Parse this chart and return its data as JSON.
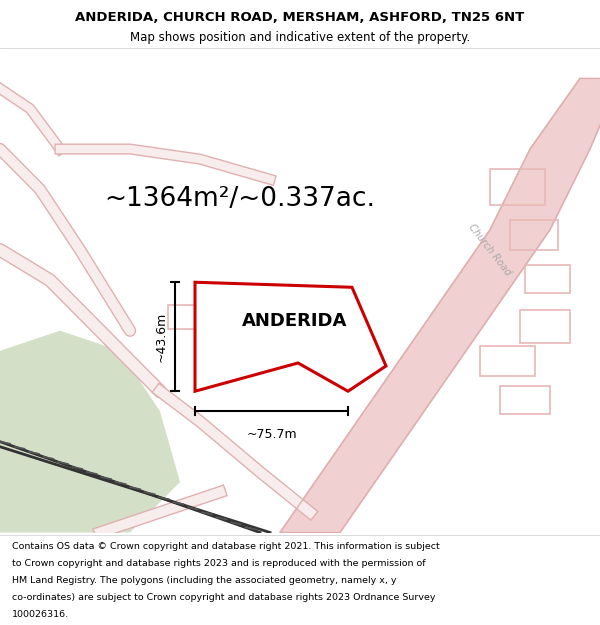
{
  "title_line1": "ANDERIDA, CHURCH ROAD, MERSHAM, ASHFORD, TN25 6NT",
  "title_line2": "Map shows position and indicative extent of the property.",
  "area_text": "~1364m²/~0.337ac.",
  "property_label": "ANDERIDA",
  "dim_horizontal": "~75.7m",
  "dim_vertical": "~43.6m",
  "road_label": "Church Road",
  "footer_lines": [
    "Contains OS data © Crown copyright and database right 2021. This information is subject",
    "to Crown copyright and database rights 2023 and is reproduced with the permission of",
    "HM Land Registry. The polygons (including the associated geometry, namely x, y",
    "co-ordinates) are subject to Crown copyright and database rights 2023 Ordnance Survey",
    "100026316."
  ],
  "map_bg": "#ffffff",
  "property_color": "#cc0000",
  "road_fill": "#f0d0d0",
  "road_edge": "#e0b0b0",
  "green_color": "#c8d8b8",
  "railway_color": "#555555",
  "building_color": "#e8b8b8",
  "title_bg": "#ffffff",
  "footer_bg": "#ffffff"
}
